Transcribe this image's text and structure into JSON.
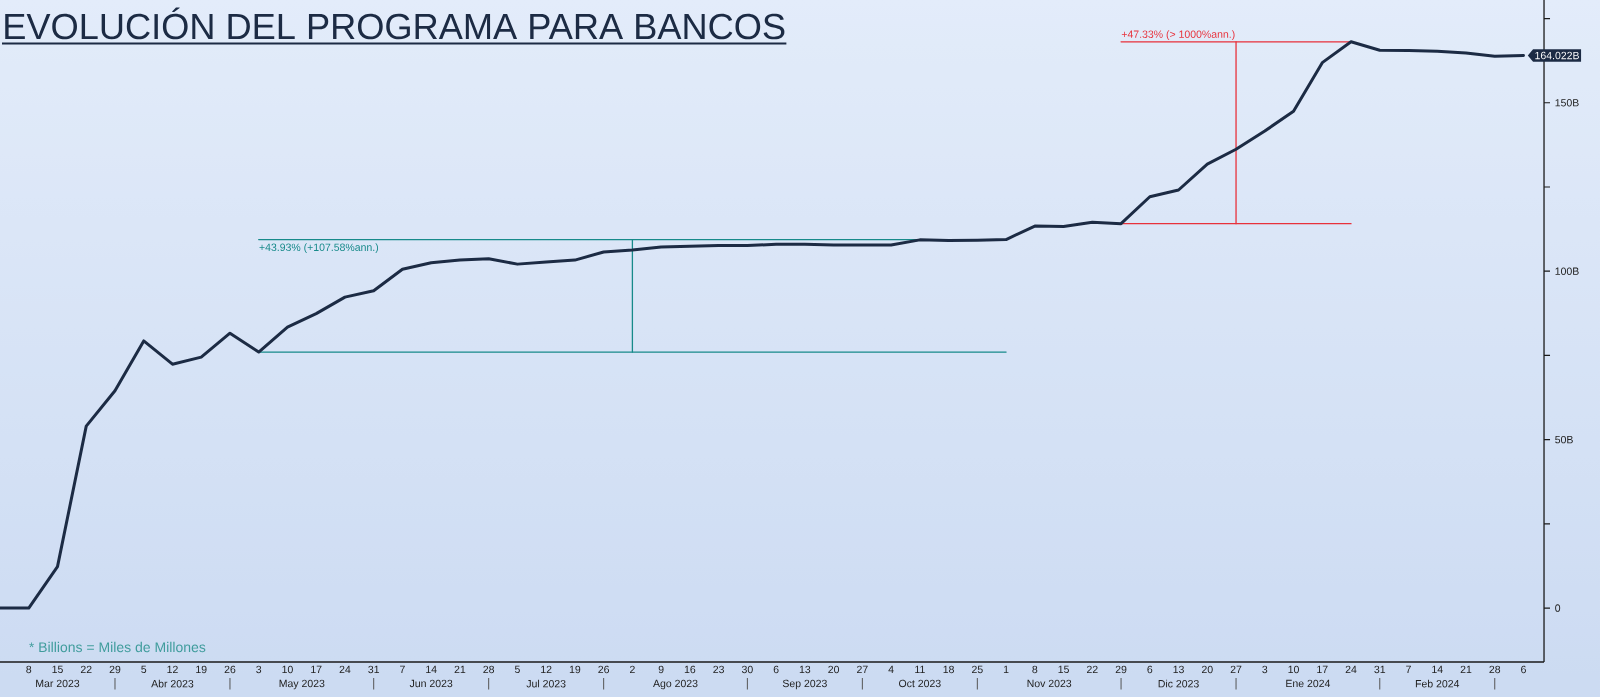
{
  "chart_data": {
    "type": "line",
    "title": "EVOLUCIÓN DEL PROGRAMA PARA BANCOS",
    "annotations": [
      {
        "text": "+43.93% (+107.58%ann.)",
        "x": "2023-05-03",
        "y": 109.4
      },
      {
        "text": "+47.33% (> 1000%ann.)",
        "x": "2023-11-29",
        "y": 168.1
      },
      "* Billions = Miles de Millones"
    ],
    "x": [
      "2023-03-01",
      "2023-03-08",
      "2023-03-15",
      "2023-03-22",
      "2023-03-29",
      "2023-04-05",
      "2023-04-12",
      "2023-04-19",
      "2023-04-26",
      "2023-05-03",
      "2023-05-10",
      "2023-05-17",
      "2023-05-24",
      "2023-05-31",
      "2023-06-07",
      "2023-06-14",
      "2023-06-21",
      "2023-06-28",
      "2023-07-05",
      "2023-07-12",
      "2023-07-19",
      "2023-07-26",
      "2023-08-02",
      "2023-08-09",
      "2023-08-16",
      "2023-08-23",
      "2023-08-30",
      "2023-09-06",
      "2023-09-13",
      "2023-09-20",
      "2023-09-27",
      "2023-10-04",
      "2023-10-11",
      "2023-10-18",
      "2023-10-25",
      "2023-11-01",
      "2023-11-08",
      "2023-11-15",
      "2023-11-22",
      "2023-11-29",
      "2023-12-06",
      "2023-12-13",
      "2023-12-20",
      "2023-12-27",
      "2024-01-03",
      "2024-01-10",
      "2024-01-17",
      "2024-01-24",
      "2024-01-31",
      "2024-02-07",
      "2024-02-14",
      "2024-02-21",
      "2024-02-28",
      "2024-03-06"
    ],
    "series": [
      {
        "color": "#1c2b44",
        "values": [
          0,
          0,
          12.3,
          54.0,
          64.5,
          79.3,
          72.4,
          74.5,
          81.6,
          76.0,
          83.4,
          87.4,
          92.3,
          94.2,
          100.6,
          102.5,
          103.3,
          103.7,
          102.1,
          102.7,
          103.3,
          105.7,
          106.3,
          107.2,
          107.4,
          107.6,
          107.6,
          108.0,
          108.0,
          107.8,
          107.8,
          107.8,
          109.3,
          109.1,
          109.2,
          109.4,
          113.4,
          113.3,
          114.5,
          114.1,
          122.1,
          124.1,
          131.8,
          136.2,
          141.6,
          147.5,
          161.9,
          168.1,
          165.6,
          165.5,
          165.3,
          164.8,
          163.8,
          164.022
        ],
        "value_labels": [
          null,
          null,
          null,
          null,
          null,
          null,
          null,
          null,
          null,
          null,
          null,
          null,
          null,
          null,
          null,
          null,
          null,
          null,
          null,
          null,
          null,
          null,
          null,
          null,
          null,
          null,
          null,
          null,
          null,
          null,
          null,
          null,
          null,
          null,
          null,
          null,
          null,
          null,
          null,
          null,
          null,
          null,
          null,
          null,
          null,
          null,
          null,
          null,
          null,
          null,
          null,
          null,
          null,
          "164.022B"
        ]
      },
      {
        "color": "#178a8a",
        "x": [
          "2023-05-03",
          "2023-11-01"
        ],
        "values": [
          76.0,
          76.0
        ]
      },
      {
        "color": "#178a8a",
        "x": [
          "2023-05-03",
          "2023-11-01"
        ],
        "values": [
          109.4,
          109.4
        ]
      },
      {
        "color": "#178a8a",
        "x": [
          "2023-08-02",
          "2023-08-02"
        ],
        "values": [
          76.0,
          109.4
        ]
      },
      {
        "color": "#e8313b",
        "x": [
          "2023-11-29",
          "2024-01-24"
        ],
        "values": [
          114.1,
          114.1
        ]
      },
      {
        "color": "#e8313b",
        "x": [
          "2023-11-29",
          "2024-01-24"
        ],
        "values": [
          168.1,
          168.1
        ]
      },
      {
        "color": "#e8313b",
        "x": [
          "2023-12-27",
          "2023-12-27"
        ],
        "values": [
          114.1,
          168.1
        ]
      }
    ],
    "xlim": [
      "2023-03-01",
      "2024-03-11"
    ],
    "xticks": [
      {
        "value": "2023-03-08",
        "label": "8"
      },
      {
        "value": "2023-03-15",
        "label": "15"
      },
      {
        "value": "2023-03-22",
        "label": "22"
      },
      {
        "value": "2023-03-29",
        "label": "29"
      },
      {
        "value": "2023-04-05",
        "label": "5"
      },
      {
        "value": "2023-04-12",
        "label": "12"
      },
      {
        "value": "2023-04-19",
        "label": "19"
      },
      {
        "value": "2023-04-26",
        "label": "26"
      },
      {
        "value": "2023-05-03",
        "label": "3"
      },
      {
        "value": "2023-05-10",
        "label": "10"
      },
      {
        "value": "2023-05-17",
        "label": "17"
      },
      {
        "value": "2023-05-24",
        "label": "24"
      },
      {
        "value": "2023-05-31",
        "label": "31"
      },
      {
        "value": "2023-06-07",
        "label": "7"
      },
      {
        "value": "2023-06-14",
        "label": "14"
      },
      {
        "value": "2023-06-21",
        "label": "21"
      },
      {
        "value": "2023-06-28",
        "label": "28"
      },
      {
        "value": "2023-07-05",
        "label": "5"
      },
      {
        "value": "2023-07-12",
        "label": "12"
      },
      {
        "value": "2023-07-19",
        "label": "19"
      },
      {
        "value": "2023-07-26",
        "label": "26"
      },
      {
        "value": "2023-08-02",
        "label": "2"
      },
      {
        "value": "2023-08-09",
        "label": "9"
      },
      {
        "value": "2023-08-16",
        "label": "16"
      },
      {
        "value": "2023-08-23",
        "label": "23"
      },
      {
        "value": "2023-08-30",
        "label": "30"
      },
      {
        "value": "2023-09-06",
        "label": "6"
      },
      {
        "value": "2023-09-13",
        "label": "13"
      },
      {
        "value": "2023-09-20",
        "label": "20"
      },
      {
        "value": "2023-09-27",
        "label": "27"
      },
      {
        "value": "2023-10-04",
        "label": "4"
      },
      {
        "value": "2023-10-11",
        "label": "11"
      },
      {
        "value": "2023-10-18",
        "label": "18"
      },
      {
        "value": "2023-10-25",
        "label": "25"
      },
      {
        "value": "2023-11-01",
        "label": "1"
      },
      {
        "value": "2023-11-08",
        "label": "8"
      },
      {
        "value": "2023-11-15",
        "label": "15"
      },
      {
        "value": "2023-11-22",
        "label": "22"
      },
      {
        "value": "2023-11-29",
        "label": "29"
      },
      {
        "value": "2023-12-06",
        "label": "6"
      },
      {
        "value": "2023-12-13",
        "label": "13"
      },
      {
        "value": "2023-12-20",
        "label": "20"
      },
      {
        "value": "2023-12-27",
        "label": "27"
      },
      {
        "value": "2024-01-03",
        "label": "3"
      },
      {
        "value": "2024-01-10",
        "label": "10"
      },
      {
        "value": "2024-01-17",
        "label": "17"
      },
      {
        "value": "2024-01-24",
        "label": "24"
      },
      {
        "value": "2024-01-31",
        "label": "31"
      },
      {
        "value": "2024-02-07",
        "label": "7"
      },
      {
        "value": "2024-02-14",
        "label": "14"
      },
      {
        "value": "2024-02-21",
        "label": "21"
      },
      {
        "value": "2024-02-28",
        "label": "28"
      },
      {
        "value": "2024-03-06",
        "label": "6"
      }
    ],
    "x2lim": [
      "2023-03-01",
      "2024-03-11"
    ],
    "x2ticks": [
      {
        "value": "2023-03-15",
        "label": "Mar 2023"
      },
      {
        "value": "2023-04-12",
        "label": "Abr 2023"
      },
      {
        "value": "2023-05-13T12:00",
        "label": "May 2023"
      },
      {
        "value": "2023-06-14",
        "label": "Jun 2023"
      },
      {
        "value": "2023-07-12",
        "label": "Jul 2023"
      },
      {
        "value": "2023-08-12T12:00",
        "label": "Ago 2023"
      },
      {
        "value": "2023-09-13",
        "label": "Sep 2023"
      },
      {
        "value": "2023-10-11",
        "label": "Oct 2023"
      },
      {
        "value": "2023-11-11T12:00",
        "label": "Nov 2023"
      },
      {
        "value": "2023-12-13",
        "label": "Dic 2023"
      },
      {
        "value": "2024-01-13T12:00",
        "label": "Ene 2024"
      },
      {
        "value": "2024-02-14",
        "label": "Feb 2024"
      }
    ],
    "ylim": [
      -16,
      180.5
    ],
    "yticks": [
      0,
      {
        "value": 25,
        "label": null
      },
      {
        "value": 50,
        "label": "50B"
      },
      {
        "value": 75,
        "label": null
      },
      {
        "value": 100,
        "label": "100B"
      },
      {
        "value": 125,
        "label": null
      },
      {
        "value": 150,
        "label": "150B"
      },
      {
        "value": 175,
        "label": null
      }
    ]
  }
}
